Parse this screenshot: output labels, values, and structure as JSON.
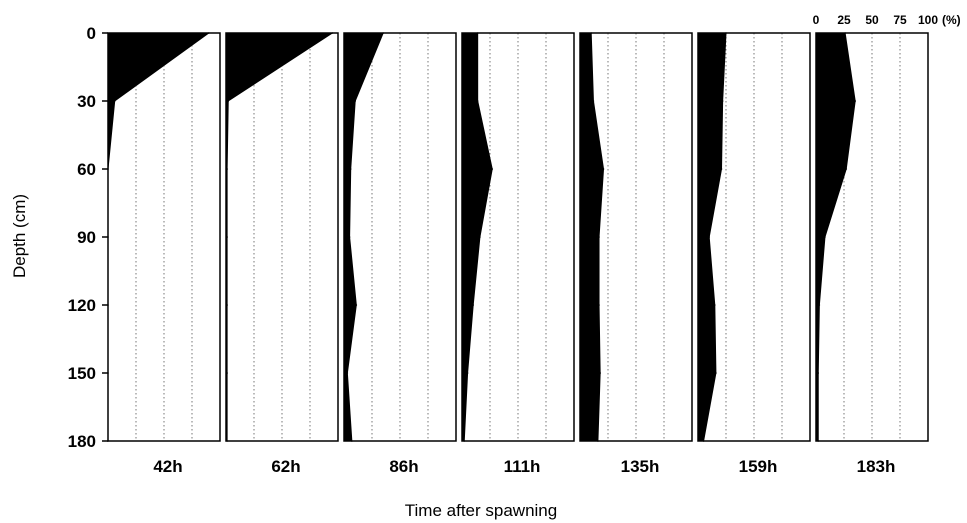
{
  "chart_data": {
    "type": "area",
    "xlabel": "Time after spawning",
    "ylabel": "Depth (cm)",
    "y_ticks": [
      0,
      30,
      60,
      90,
      120,
      150,
      180
    ],
    "ylim": [
      0,
      180
    ],
    "x_ticks": [
      0,
      25,
      50,
      75,
      100
    ],
    "xlim": [
      0,
      100
    ],
    "x_unit_label": "(%)",
    "grid": "vertical dotted lines at 25, 50, 75",
    "depths": [
      0,
      30,
      60,
      90,
      120,
      150,
      180
    ],
    "panels": [
      {
        "label": "42h",
        "values": [
          90,
          6,
          0,
          0,
          0,
          0,
          0
        ]
      },
      {
        "label": "62h",
        "values": [
          95,
          2,
          1,
          1,
          1,
          1,
          1
        ]
      },
      {
        "label": "86h",
        "values": [
          35,
          10,
          6,
          5,
          11,
          3,
          7
        ]
      },
      {
        "label": "111h",
        "values": [
          14,
          14,
          27,
          16,
          10,
          5,
          2
        ]
      },
      {
        "label": "135h",
        "values": [
          10,
          12,
          21,
          17,
          17,
          18,
          16
        ]
      },
      {
        "label": "159h",
        "values": [
          25,
          22,
          21,
          10,
          15,
          16,
          5
        ]
      },
      {
        "label": "183h",
        "values": [
          26,
          35,
          27,
          8,
          3,
          2,
          2
        ]
      }
    ]
  }
}
